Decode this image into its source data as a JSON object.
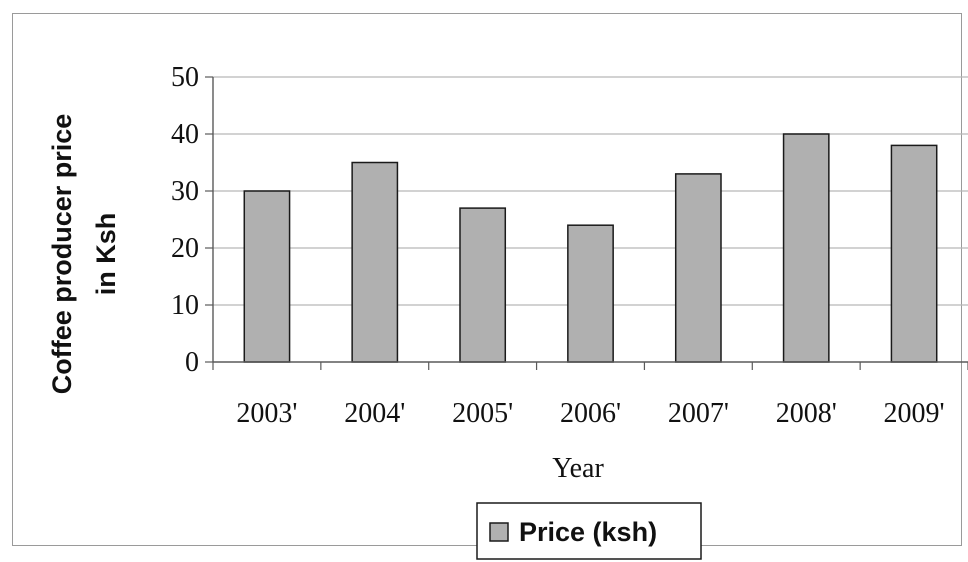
{
  "chart_data": {
    "type": "bar",
    "categories": [
      "2003'",
      "2004'",
      "2005'",
      "2006'",
      "2007'",
      "2008'",
      "2009'"
    ],
    "series": [
      {
        "name": "Price (ksh)",
        "values": [
          30,
          35,
          27,
          24,
          33,
          40,
          38
        ]
      }
    ],
    "xlabel": "Year",
    "ylabel_lines": [
      "Coffee producer price",
      "in Ksh"
    ],
    "ylim": [
      0,
      50
    ],
    "yticks": [
      0,
      10,
      20,
      30,
      40,
      50
    ],
    "grid": true,
    "legend_position": "bottom",
    "colors": {
      "bar_fill": "#b0b0b0",
      "bar_stroke": "#1a1a1a",
      "grid": "#b8b8b8",
      "axis": "#5a5a5a"
    }
  }
}
